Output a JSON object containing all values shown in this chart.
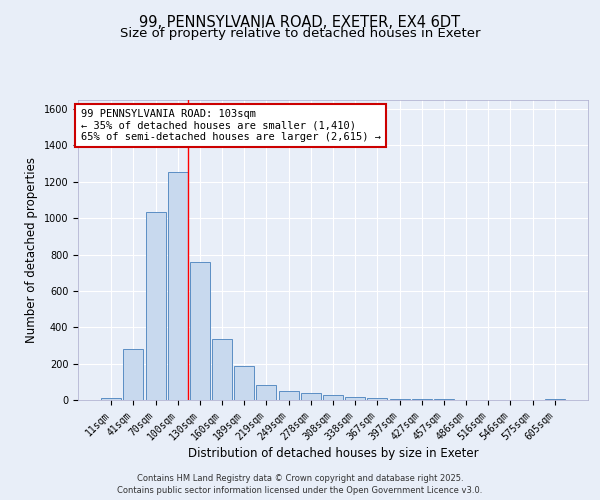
{
  "title_line1": "99, PENNSYLVANIA ROAD, EXETER, EX4 6DT",
  "title_line2": "Size of property relative to detached houses in Exeter",
  "xlabel": "Distribution of detached houses by size in Exeter",
  "ylabel": "Number of detached properties",
  "categories": [
    "11sqm",
    "41sqm",
    "70sqm",
    "100sqm",
    "130sqm",
    "160sqm",
    "189sqm",
    "219sqm",
    "249sqm",
    "278sqm",
    "308sqm",
    "338sqm",
    "367sqm",
    "397sqm",
    "427sqm",
    "457sqm",
    "486sqm",
    "516sqm",
    "546sqm",
    "575sqm",
    "605sqm"
  ],
  "values": [
    10,
    280,
    1035,
    1255,
    760,
    335,
    185,
    80,
    50,
    38,
    25,
    15,
    10,
    5,
    8,
    3,
    2,
    0,
    0,
    0,
    5
  ],
  "bar_color": "#c8d9ee",
  "bar_edge_color": "#5b8ec4",
  "property_line_index": 3.45,
  "annotation_title": "99 PENNSYLVANIA ROAD: 103sqm",
  "annotation_line1": "← 35% of detached houses are smaller (1,410)",
  "annotation_line2": "65% of semi-detached houses are larger (2,615) →",
  "annotation_box_facecolor": "#ffffff",
  "annotation_box_edgecolor": "#cc0000",
  "ylim": [
    0,
    1650
  ],
  "yticks": [
    0,
    200,
    400,
    600,
    800,
    1000,
    1200,
    1400,
    1600
  ],
  "footer_line1": "Contains HM Land Registry data © Crown copyright and database right 2025.",
  "footer_line2": "Contains public sector information licensed under the Open Government Licence v3.0.",
  "background_color": "#e8eef8",
  "plot_background": "#e8eef8",
  "grid_color": "#ffffff",
  "title_fontsize": 10.5,
  "subtitle_fontsize": 9.5,
  "tick_fontsize": 7,
  "label_fontsize": 8.5,
  "footer_fontsize": 6,
  "annotation_fontsize": 7.5
}
